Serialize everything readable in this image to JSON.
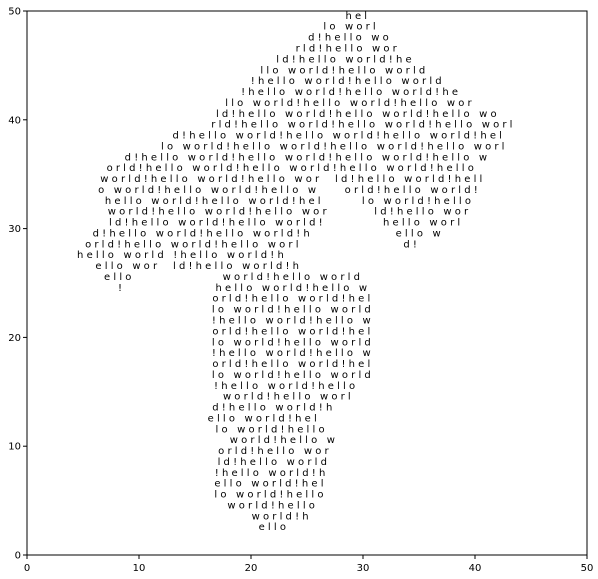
{
  "chart_data": {
    "type": "scatter",
    "title": "",
    "xlabel": "",
    "ylabel": "",
    "xlim": [
      0,
      50
    ],
    "ylim": [
      0,
      50
    ],
    "grid": false,
    "x_ticks": [
      0,
      10,
      20,
      30,
      40,
      50
    ],
    "y_ticks": [
      0,
      10,
      20,
      30,
      40,
      50
    ],
    "x_tick_labels": [
      "0",
      "10",
      "20",
      "30",
      "40",
      "50"
    ],
    "y_tick_labels": [
      "0",
      "10",
      "20",
      "30",
      "40",
      "50"
    ],
    "text_lines": [
      {
        "y": 49.6,
        "x": 29.4,
        "text": "h e l"
      },
      {
        "y": 48.6,
        "x": 28.8,
        "text": "l o   w o r l"
      },
      {
        "y": 47.6,
        "x": 28.7,
        "text": "d ! h e l l o   w o"
      },
      {
        "y": 46.6,
        "x": 28.5,
        "text": "r l d ! h e l l o   w o r"
      },
      {
        "y": 45.6,
        "x": 28.3,
        "text": "l d ! h e l l o   w o r l d ! h e"
      },
      {
        "y": 44.6,
        "x": 28.2,
        "text": "l l o   w o r l d ! h e l l o   w o r l d"
      },
      {
        "y": 43.6,
        "x": 28.5,
        "text": "! h e l l o   w o r l d ! h e l l o   w o r l d"
      },
      {
        "y": 42.6,
        "x": 28.8,
        "text": "! h e l l o   w o r l d ! h e l l o   w o r l d ! h e"
      },
      {
        "y": 41.6,
        "x": 28.7,
        "text": "l l o   w o r l d ! h e l l o   w o r l d ! h e l l o   w o r"
      },
      {
        "y": 40.6,
        "x": 29.4,
        "text": "l d ! h e l l o   w o r l d ! h e l l o   w o r l d ! h e l l o   w o"
      },
      {
        "y": 39.6,
        "x": 29.9,
        "text": "r l d ! h e l l o   w o r l d ! h e l l o   w o r l d ! h e l l o   w o r l"
      },
      {
        "y": 38.6,
        "x": 27.7,
        "text": "d ! h e l l o   w o r l d ! h e l l o   w o r l d ! h e l l o   w o r l d ! h e l"
      },
      {
        "y": 37.6,
        "x": 27.3,
        "text": "l o   w o r l d ! h e l l o   w o r l d ! h e l l o   w o r l d ! h e l l o   w o r l"
      },
      {
        "y": 36.6,
        "x": 24.9,
        "text": "d ! h e l l o   w o r l d ! h e l l o   w o r l d ! h e l l o   w o r l d ! h e l l o   w"
      },
      {
        "y": 35.6,
        "x": 23.5,
        "text": "o r l d ! h e l l o   w o r l d ! h e l l o   w o r l d ! h e l l o   w o r l d ! h e l l o"
      },
      {
        "y": 34.6,
        "x": 23.6,
        "text": "w o r l d ! h e l l o   w o r l d ! h e l l o   w o r     l d ! h e l l o   w o r l d ! h e l l"
      },
      {
        "y": 33.6,
        "x": 23.3,
        "text": "o   w o r l d ! h e l l o   w o r l d ! h e l l o   w         o r l d ! h e l l o   w o r l d !"
      },
      {
        "y": 32.6,
        "x": 23.3,
        "text": "h e l l o   w o r l d ! h e l l o   w o r l d ! h e l             l o   w o r l d ! h e l l o"
      },
      {
        "y": 31.6,
        "x": 23.3,
        "text": "w o r l d ! h e l l o   w o r l d ! h e l l o   w o r               l d ! h e l l o   w o r"
      },
      {
        "y": 30.6,
        "x": 23.0,
        "text": "l d ! h e l l o   w o r l d ! h e l l o   w o r l d !                   h e l l o   w o r l"
      },
      {
        "y": 29.6,
        "x": 21.4,
        "text": "d ! h e l l o   w o r l d ! h e l l o   w o r l d ! h                           e l l o   w"
      },
      {
        "y": 28.6,
        "x": 20.0,
        "text": "o r l d ! h e l l o   w o r l d ! h e l l o   w o r l                                 d !"
      },
      {
        "y": 27.6,
        "x": 13.7,
        "text": "h e l l o   w o r l d   ! h e l l o   w o r l d ! h"
      },
      {
        "y": 26.6,
        "x": 15.2,
        "text": "e l l o   w o r     l d ! h e l l o   w o r l d ! h"
      },
      {
        "y": 25.6,
        "x": 8.1,
        "text": "e l l o"
      },
      {
        "y": 24.6,
        "x": 8.3,
        "text": "!"
      },
      {
        "y": 25.6,
        "x": 23.6,
        "text": "w o r l d ! h e l l o   w o r l d"
      },
      {
        "y": 24.6,
        "x": 23.6,
        "text": "h e l l o   w o r l d ! h e l l o   w"
      },
      {
        "y": 23.6,
        "x": 23.6,
        "text": "o r l d ! h e l l o   w o r l d ! h e l"
      },
      {
        "y": 22.6,
        "x": 23.6,
        "text": "l o   w o r l d ! h e l l o   w o r l d"
      },
      {
        "y": 21.6,
        "x": 23.6,
        "text": "! h e l l o   w o r l d ! h e l l o   w"
      },
      {
        "y": 20.6,
        "x": 23.6,
        "text": "o r l d ! h e l l o   w o r l d ! h e l"
      },
      {
        "y": 19.6,
        "x": 23.6,
        "text": "l o   w o r l d ! h e l l o   w o r l d"
      },
      {
        "y": 18.6,
        "x": 23.6,
        "text": "! h e l l o   w o r l d ! h e l l o   w"
      },
      {
        "y": 17.6,
        "x": 23.6,
        "text": "o r l d ! h e l l o   w o r l d ! h e l"
      },
      {
        "y": 16.6,
        "x": 23.6,
        "text": "l o   w o r l d ! h e l l o   w o r l d"
      },
      {
        "y": 15.6,
        "x": 23.0,
        "text": "! h e l l o   w o r l d ! h e l l o"
      },
      {
        "y": 14.6,
        "x": 23.2,
        "text": "w o r l d ! h e l l o   w o r l"
      },
      {
        "y": 13.6,
        "x": 21.9,
        "text": "d ! h e l l o   w o r l d ! h"
      },
      {
        "y": 12.6,
        "x": 21.0,
        "text": "e l l o   w o r l d ! h e l"
      },
      {
        "y": 11.6,
        "x": 21.7,
        "text": "l o   w o r l d ! h e l l o"
      },
      {
        "y": 10.6,
        "x": 22.8,
        "text": "w o r l d ! h e l l o   w"
      },
      {
        "y": 9.6,
        "x": 22.0,
        "text": "o r l d ! h e l l o   w o r"
      },
      {
        "y": 8.6,
        "x": 21.9,
        "text": "l d ! h e l l o   w o r l d"
      },
      {
        "y": 7.6,
        "x": 21.7,
        "text": "! h e l l o   w o r l d ! h"
      },
      {
        "y": 6.6,
        "x": 21.6,
        "text": "e l l o   w o r l d ! h e l"
      },
      {
        "y": 5.6,
        "x": 21.6,
        "text": "l o   w o r l d ! h e l l o"
      },
      {
        "y": 4.6,
        "x": 21.8,
        "text": "w o r l d ! h e l l o"
      },
      {
        "y": 3.6,
        "x": 22.6,
        "text": "w o r l d ! h"
      },
      {
        "y": 2.6,
        "x": 21.9,
        "text": "e l l o"
      }
    ]
  }
}
